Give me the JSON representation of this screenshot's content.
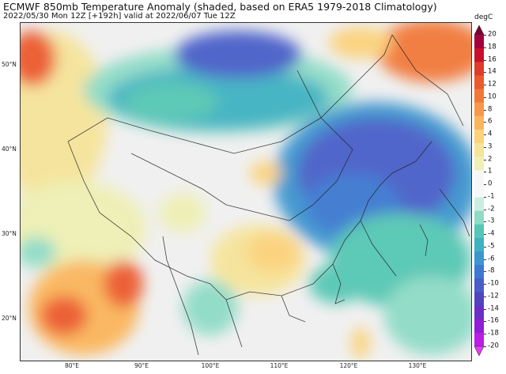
{
  "header": {
    "title": "ECMWF 850mb Temperature Anomaly (shaded, based on ERA5 1979-2018 Climatology)",
    "subtitle": "2022/05/30 Mon 12Z [+192h] valid at 2022/06/07 Tue 12Z"
  },
  "axes": {
    "lat_labels": [
      {
        "text": "50°N",
        "lat": 50
      },
      {
        "text": "40°N",
        "lat": 40
      },
      {
        "text": "30°N",
        "lat": 30
      },
      {
        "text": "20°N",
        "lat": 20
      }
    ],
    "lon_labels": [
      {
        "text": "80°E",
        "lon": 80
      },
      {
        "text": "90°E",
        "lon": 90
      },
      {
        "text": "100°E",
        "lon": 100
      },
      {
        "text": "110°E",
        "lon": 110
      },
      {
        "text": "120°E",
        "lon": 120
      },
      {
        "text": "130°E",
        "lon": 130
      }
    ]
  },
  "colorbar": {
    "units": "degC",
    "ticks": [
      "20",
      "18",
      "16",
      "14",
      "12",
      "10",
      "8",
      "6",
      "4",
      "3",
      "2",
      "1",
      "0",
      "-1",
      "-2",
      "-3",
      "-4",
      "-5",
      "-6",
      "-8",
      "-10",
      "-12",
      "-14",
      "-16",
      "-18",
      "-20"
    ],
    "colors": [
      "#7a0033",
      "#a3003b",
      "#c8102e",
      "#de3b2b",
      "#ec5a2e",
      "#f2793a",
      "#f7984a",
      "#fbb65c",
      "#fcd27a",
      "#f6e49a",
      "#eef0b4",
      "#f7f7f7",
      "#f7f7f7",
      "#cbeee0",
      "#8fdcc6",
      "#56c7b4",
      "#3fb2c2",
      "#3c96cf",
      "#3d79d1",
      "#4a5ec9",
      "#5145be",
      "#6a30c6",
      "#8f1fd6",
      "#bb1de3",
      "#e63cf0"
    ]
  }
}
